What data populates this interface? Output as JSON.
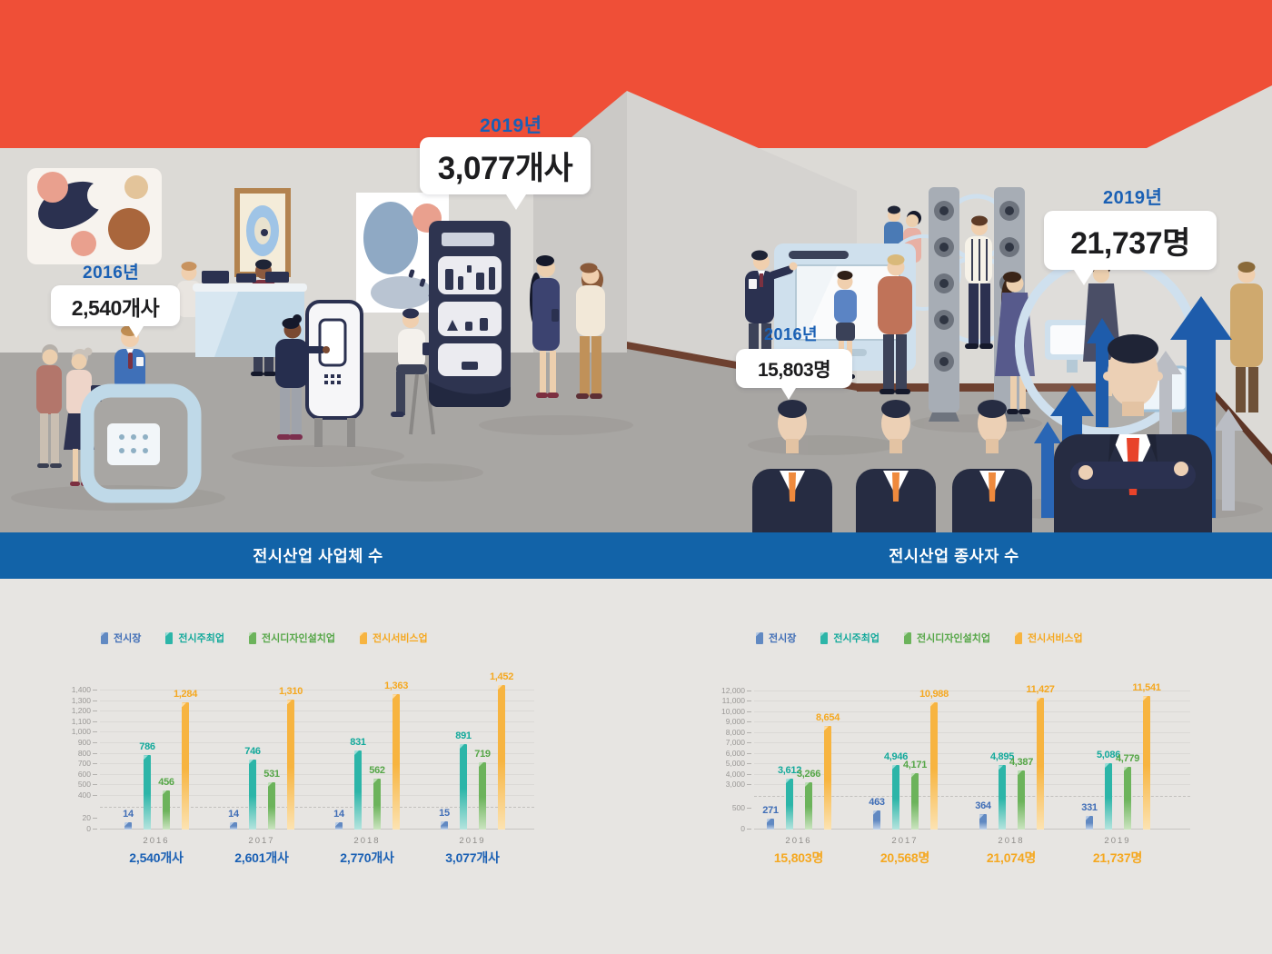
{
  "scene": {
    "left_room": {
      "start_year": "2016년",
      "start_value": "2,540개사",
      "end_year": "2019년",
      "end_value": "3,077개사"
    },
    "right_room": {
      "start_year": "2016년",
      "start_value": "15,803명",
      "end_year": "2019년",
      "end_value": "21,737명"
    }
  },
  "banner": {
    "left_title": "전시산업 사업체 수",
    "right_title": "전시산업 종사자 수"
  },
  "colors": {
    "ceiling_red": "#ef4f37",
    "banner_blue": "#1263a8",
    "year_label_blue": "#1a60b4",
    "series": [
      "#6189c2",
      "#2cb5a8",
      "#6cb35b",
      "#f7b440"
    ],
    "series_light": [
      "#c3d4ea",
      "#b5e4de",
      "#cbe4c0",
      "#fce3b2"
    ],
    "series_text": [
      "#3f6db6",
      "#13a99b",
      "#55a647",
      "#f5a820"
    ],
    "totals_text": [
      "#1a60b4",
      "#f5a820"
    ]
  },
  "chart_data": [
    {
      "type": "bar",
      "title": "전시산업 사업체 수",
      "unit_suffix": "개사",
      "categories": [
        "2016",
        "2017",
        "2018",
        "2019"
      ],
      "series": [
        {
          "name": "전시장",
          "values": [
            14,
            14,
            14,
            15
          ]
        },
        {
          "name": "전시주최업",
          "values": [
            786,
            746,
            831,
            891
          ]
        },
        {
          "name": "전시디자인설치업",
          "values": [
            456,
            531,
            562,
            719
          ]
        },
        {
          "name": "전시서비스업",
          "values": [
            1284,
            1310,
            1363,
            1452
          ]
        }
      ],
      "totals": [
        "2,540개사",
        "2,601개사",
        "2,770개사",
        "3,077개사"
      ],
      "y_ticks": [
        0,
        20,
        400,
        500,
        600,
        700,
        800,
        900,
        1000,
        1100,
        1200,
        1300,
        1400
      ],
      "axis_break": {
        "between": [
          20,
          400
        ]
      },
      "legend_position": "top-left",
      "grid": true
    },
    {
      "type": "bar",
      "title": "전시산업 종사자 수",
      "unit_suffix": "명",
      "categories": [
        "2016",
        "2017",
        "2018",
        "2019"
      ],
      "series": [
        {
          "name": "전시장",
          "values": [
            271,
            463,
            364,
            331
          ]
        },
        {
          "name": "전시주최업",
          "values": [
            3612,
            4946,
            4895,
            5086
          ]
        },
        {
          "name": "전시디자인설치업",
          "values": [
            3266,
            4171,
            4387,
            4779
          ]
        },
        {
          "name": "전시서비스업",
          "values": [
            8654,
            10988,
            11427,
            11541
          ]
        }
      ],
      "totals": [
        "15,803명",
        "20,568명",
        "21,074명",
        "21,737명"
      ],
      "y_ticks": [
        0,
        500,
        3000,
        4000,
        5000,
        6000,
        7000,
        8000,
        9000,
        10000,
        11000,
        12000
      ],
      "axis_break": {
        "between": [
          500,
          3000
        ]
      },
      "legend_position": "top-left",
      "grid": true
    }
  ]
}
